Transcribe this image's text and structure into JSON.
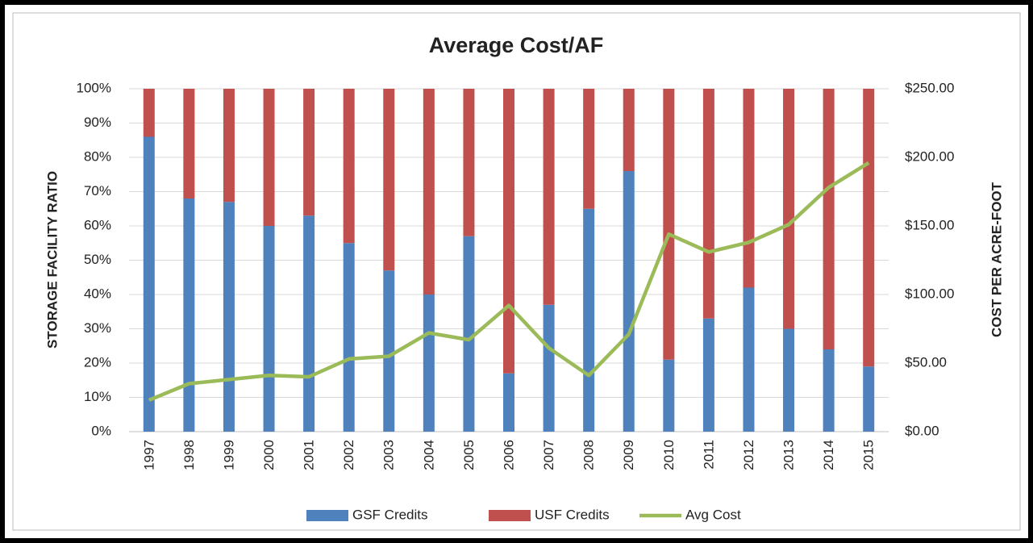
{
  "chart_data": {
    "type": "bar",
    "stacked": true,
    "title": "Average Cost/AF",
    "y_label": "STORAGE FACILITY RATIO",
    "y2_label": "COST PER ACRE-FOOT",
    "categories": [
      "1997",
      "1998",
      "1999",
      "2000",
      "2001",
      "2002",
      "2003",
      "2004",
      "2005",
      "2006",
      "2007",
      "2008",
      "2009",
      "2010",
      "2011",
      "2012",
      "2013",
      "2014",
      "2015"
    ],
    "series": [
      {
        "name": "GSF Credits",
        "color": "#4f81bd",
        "type": "bar",
        "values": [
          86,
          68,
          67,
          60,
          63,
          55,
          47,
          40,
          57,
          17,
          37,
          65,
          76,
          21,
          33,
          42,
          30,
          24,
          19
        ]
      },
      {
        "name": "USF Credits",
        "color": "#c0504d",
        "type": "bar",
        "values": [
          14,
          32,
          33,
          40,
          37,
          45,
          53,
          60,
          43,
          83,
          63,
          35,
          24,
          79,
          67,
          58,
          70,
          76,
          81
        ]
      },
      {
        "name": "Avg Cost",
        "color": "#9bbb59",
        "type": "line",
        "axis": "y2",
        "values": [
          23,
          35,
          38,
          41,
          40,
          53,
          55,
          72,
          67,
          92,
          61,
          41,
          71,
          144,
          131,
          138,
          151,
          178,
          196
        ]
      }
    ],
    "ylim": [
      0,
      100
    ],
    "yticks": [
      {
        "value": 0,
        "label": "0%"
      },
      {
        "value": 10,
        "label": "10%"
      },
      {
        "value": 20,
        "label": "20%"
      },
      {
        "value": 30,
        "label": "30%"
      },
      {
        "value": 40,
        "label": "40%"
      },
      {
        "value": 50,
        "label": "50%"
      },
      {
        "value": 60,
        "label": "60%"
      },
      {
        "value": 70,
        "label": "70%"
      },
      {
        "value": 80,
        "label": "80%"
      },
      {
        "value": 90,
        "label": "90%"
      },
      {
        "value": 100,
        "label": "100%"
      }
    ],
    "y2lim": [
      0,
      250
    ],
    "y2ticks": [
      {
        "value": 0,
        "label": "$0.00"
      },
      {
        "value": 50,
        "label": "$50.00"
      },
      {
        "value": 100,
        "label": "$100.00"
      },
      {
        "value": 150,
        "label": "$150.00"
      },
      {
        "value": 200,
        "label": "$200.00"
      },
      {
        "value": 250,
        "label": "$250.00"
      }
    ],
    "grid": true,
    "legend": "bottom"
  }
}
